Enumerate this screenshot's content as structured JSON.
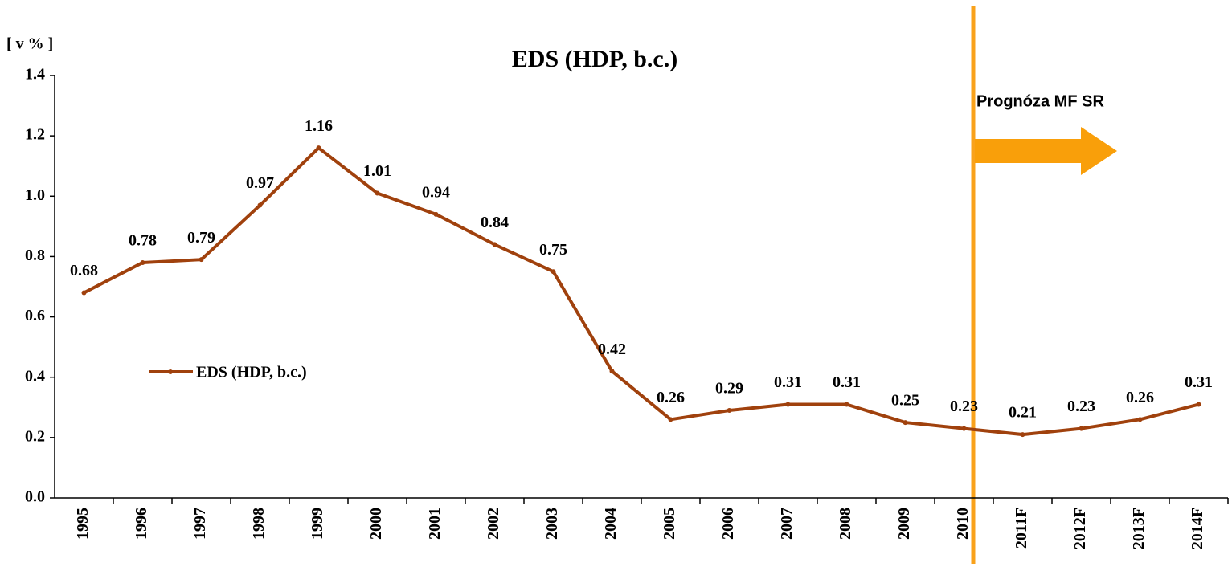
{
  "chart_data": {
    "type": "line",
    "title": "EDS (HDP, b.c.)",
    "y_label": "[ v % ]",
    "annotation": "Prognóza MF SR",
    "categories": [
      "1995",
      "1996",
      "1997",
      "1998",
      "1999",
      "2000",
      "2001",
      "2002",
      "2003",
      "2004",
      "2005",
      "2006",
      "2007",
      "2008",
      "2009",
      "2010",
      "2011F",
      "2012F",
      "2013F",
      "2014F"
    ],
    "series": [
      {
        "name": "EDS (HDP, b.c.)",
        "color": "#a0410d",
        "values": [
          0.68,
          0.78,
          0.79,
          0.97,
          1.16,
          1.01,
          0.94,
          0.84,
          0.75,
          0.42,
          0.26,
          0.29,
          0.31,
          0.31,
          0.25,
          0.23,
          0.21,
          0.23,
          0.26,
          0.31
        ]
      }
    ],
    "ylim": [
      0,
      1.4
    ],
    "yticks": [
      {
        "value": 0,
        "label": "0.0"
      },
      0.2,
      0.4,
      0.6,
      0.8,
      {
        "value": 1,
        "label": "1.0"
      },
      1.2,
      1.4
    ],
    "grid": false
  }
}
